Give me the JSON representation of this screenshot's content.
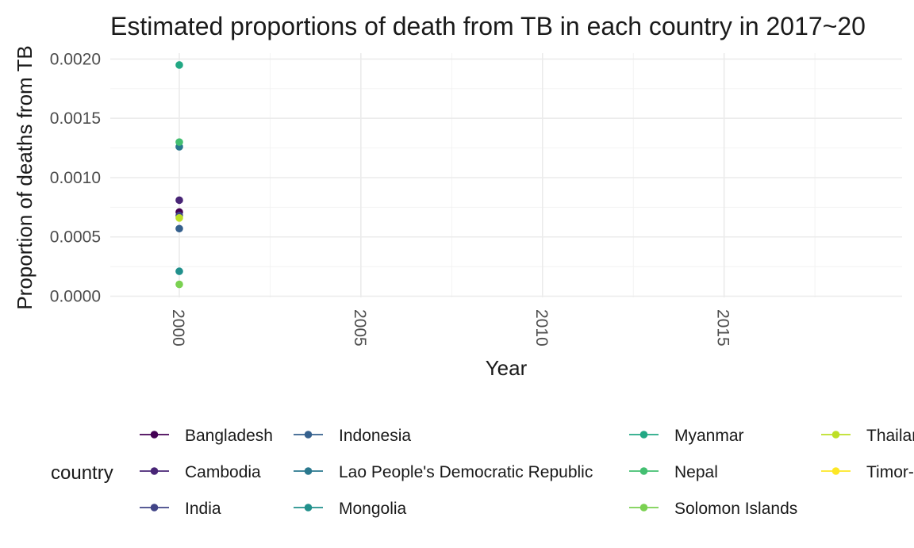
{
  "chart_data": {
    "type": "scatter",
    "title": "Estimated proportions of death from TB in each country in 2017~20",
    "xlabel": "Year",
    "ylabel": "Proportion of deaths from TB",
    "xlim": [
      1998.1,
      2019.9
    ],
    "ylim": [
      0.0,
      0.002
    ],
    "x_ticks": [
      2000,
      2005,
      2010,
      2015
    ],
    "x_tick_labels": [
      "2000",
      "2005",
      "2010",
      "2015"
    ],
    "y_ticks": [
      0.0,
      0.0005,
      0.001,
      0.0015,
      0.002
    ],
    "y_tick_labels": [
      "0.0000",
      "0.0005",
      "0.0010",
      "0.0015",
      "0.0020"
    ],
    "grid": true,
    "legend": {
      "title": "country",
      "placement": "bottom"
    },
    "series": [
      {
        "name": "Bangladesh",
        "color": "#440154",
        "points": [
          {
            "x": 2000,
            "y": 0.00071
          }
        ]
      },
      {
        "name": "Cambodia",
        "color": "#482576",
        "points": [
          {
            "x": 2000,
            "y": 0.00081
          }
        ]
      },
      {
        "name": "India",
        "color": "#414487",
        "points": [
          {
            "x": 2000,
            "y": 0.00068
          }
        ]
      },
      {
        "name": "Indonesia",
        "color": "#35608d",
        "points": [
          {
            "x": 2000,
            "y": 0.00057
          }
        ]
      },
      {
        "name": "Lao People's Democratic Republic",
        "color": "#2a788e",
        "points": [
          {
            "x": 2000,
            "y": 0.00126
          }
        ]
      },
      {
        "name": "Mongolia",
        "color": "#21908c",
        "points": [
          {
            "x": 2000,
            "y": 0.00021
          }
        ]
      },
      {
        "name": "Myanmar",
        "color": "#22a884",
        "points": [
          {
            "x": 2000,
            "y": 0.00195
          }
        ]
      },
      {
        "name": "Nepal",
        "color": "#43bf71",
        "points": [
          {
            "x": 2000,
            "y": 0.0013
          }
        ]
      },
      {
        "name": "Solomon Islands",
        "color": "#7ad151",
        "points": [
          {
            "x": 2000,
            "y": 0.0001
          }
        ]
      },
      {
        "name": "Thailand",
        "color": "#bddf26",
        "points": [
          {
            "x": 2000,
            "y": 0.00066
          }
        ]
      },
      {
        "name": "Timor-Leste",
        "color": "#fde725",
        "points": []
      }
    ],
    "legend_columns": [
      [
        "Bangladesh",
        "Cambodia",
        "India"
      ],
      [
        "Indonesia",
        "Lao People's Democratic Republic",
        "Mongolia"
      ],
      [
        "Myanmar",
        "Nepal",
        "Solomon Islands"
      ],
      [
        "Thailand",
        "Timor-Leste"
      ]
    ]
  }
}
